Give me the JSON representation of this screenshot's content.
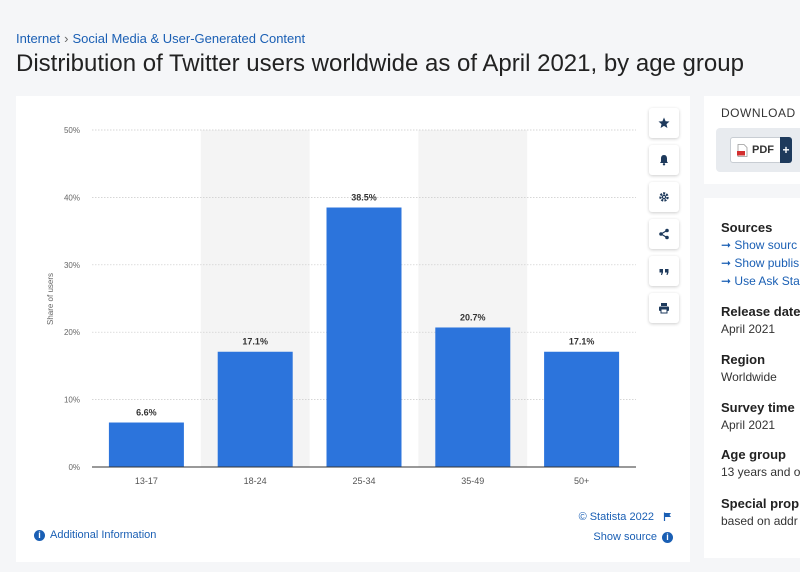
{
  "breadcrumb": {
    "items": [
      "Internet",
      "Social Media & User-Generated Content"
    ],
    "separator": "›"
  },
  "page_title": "Distribution of Twitter users worldwide as of April 2021, by age group",
  "toolbar": {
    "icons": [
      "star-icon",
      "bell-icon",
      "gear-icon",
      "share-icon",
      "quote-icon",
      "print-icon"
    ]
  },
  "footer": {
    "additional_info": "Additional Information",
    "copyright": "© Statista 2022",
    "show_source": "Show source"
  },
  "download": {
    "title": "DOWNLOAD",
    "pdf_label": "PDF",
    "plus": "+"
  },
  "details": {
    "sources_heading": "Sources",
    "source_links": [
      "Show sourc",
      "Show publis",
      "Use Ask Sta"
    ],
    "release_heading": "Release date",
    "release_value": "April 2021",
    "region_heading": "Region",
    "region_value": "Worldwide",
    "survey_heading": "Survey time",
    "survey_value": "April 2021",
    "age_heading": "Age group",
    "age_value": "13 years and o",
    "special_heading": "Special prop",
    "special_value": "based on addr"
  },
  "colors": {
    "bar": "#2c74dc",
    "link": "#1a5fb4",
    "band": "#f4f4f4"
  },
  "chart_data": {
    "type": "bar",
    "categories": [
      "13-17",
      "18-24",
      "25-34",
      "35-49",
      "50+"
    ],
    "values": [
      6.6,
      17.1,
      38.5,
      20.7,
      17.1
    ],
    "value_labels": [
      "6.6%",
      "17.1%",
      "38.5%",
      "20.7%",
      "17.1%"
    ],
    "ylabel": "Share of users",
    "ylim": [
      0,
      50
    ],
    "yticks": [
      0,
      10,
      20,
      30,
      40,
      50
    ],
    "ytick_labels": [
      "0%",
      "10%",
      "20%",
      "30%",
      "40%",
      "50%"
    ],
    "grid": true
  }
}
